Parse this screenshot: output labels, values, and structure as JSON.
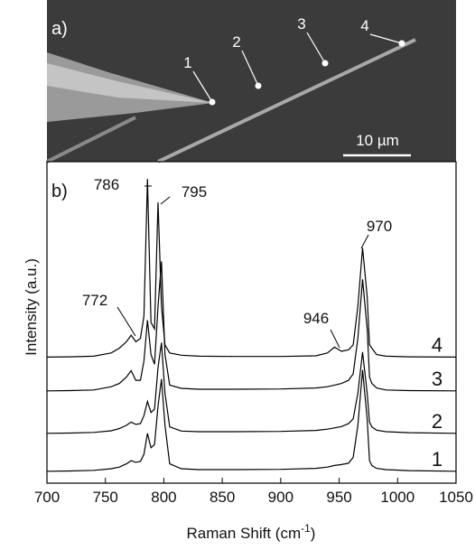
{
  "panel_a": {
    "label": "a)",
    "markers": [
      "1",
      "2",
      "3",
      "4"
    ],
    "scale_bar": "10 µm"
  },
  "chart_data": {
    "type": "line",
    "panel_label": "b)",
    "y_label": "Intensity (a.u.)",
    "x_label": {
      "text": "Raman Shift (cm",
      "superscript": "-1",
      "suffix": ")"
    },
    "xlim": [
      700,
      1050
    ],
    "xticks": [
      700,
      750,
      800,
      850,
      900,
      950,
      1000,
      1050
    ],
    "ylim": [
      0,
      100
    ],
    "x": [
      700,
      720,
      740,
      755,
      762,
      768,
      772,
      776,
      780,
      783,
      786,
      789,
      792,
      795,
      798,
      801,
      805,
      815,
      830,
      860,
      900,
      930,
      940,
      946,
      952,
      958,
      962,
      966,
      970,
      974,
      976,
      978,
      982,
      990,
      1010,
      1050
    ],
    "series": [
      {
        "name": "1",
        "color": "#000000",
        "values": [
          3.7,
          3.8,
          4,
          4.5,
          5,
          6,
          7,
          6.5,
          6.8,
          9,
          15.5,
          11,
          12,
          24,
          32.4,
          18,
          6,
          4.5,
          4.2,
          4.2,
          4.3,
          4.6,
          5,
          5.5,
          5.8,
          6.2,
          8,
          18,
          35.2,
          20,
          7,
          5.5,
          4.6,
          4.2,
          3.9,
          3.7
        ]
      },
      {
        "name": "2",
        "color": "#000000",
        "values": [
          15.5,
          15.6,
          15.8,
          16.3,
          17,
          18,
          19,
          18.3,
          18.5,
          21,
          25.4,
          22,
          23,
          36,
          43.7,
          28,
          17.5,
          16.2,
          16,
          16,
          16.1,
          16.4,
          16.8,
          17.2,
          17.6,
          18.5,
          20,
          28,
          40.8,
          28,
          19,
          17.5,
          16.5,
          16,
          15.7,
          15.5
        ]
      },
      {
        "name": "3",
        "color": "#000000",
        "values": [
          28.7,
          28.8,
          29,
          30,
          31,
          33,
          35,
          32,
          32,
          38,
          50.7,
          40,
          37,
          55,
          69,
          40,
          30.5,
          29.5,
          29.2,
          29.2,
          29.3,
          29.6,
          30,
          30.5,
          31,
          32,
          34,
          45,
          63.4,
          48,
          33,
          31,
          29.6,
          29,
          28.8,
          28.7
        ]
      },
      {
        "name": "4",
        "color": "#000000",
        "values": [
          39.2,
          39.3,
          39.5,
          40.5,
          42,
          44,
          46,
          44,
          45,
          52,
          94.6,
          50,
          48,
          87.3,
          55,
          43,
          40.5,
          39.8,
          39.5,
          39.4,
          39.4,
          39.6,
          40.5,
          42.3,
          41,
          41.5,
          43,
          55,
          73.2,
          58,
          43,
          42,
          40,
          39.5,
          39.3,
          39.2
        ]
      }
    ],
    "annotations": [
      "786",
      "795",
      "772",
      "946",
      "970"
    ]
  }
}
